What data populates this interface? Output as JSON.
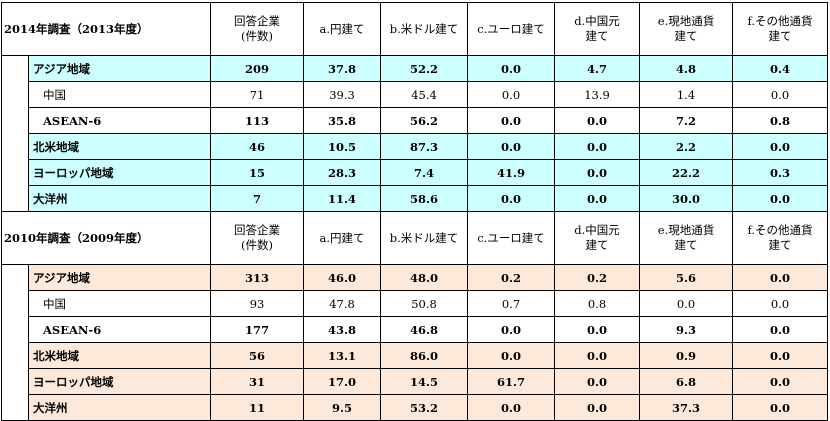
{
  "columns": [
    "回答企業\n(件数)",
    "a.円建て",
    "b.米ドル建て",
    "c.ユーロ建て",
    "d.中国元\n建て",
    "e.現地通貨\n建て",
    "f.その他通貨\n建て"
  ],
  "sections": [
    {
      "title": "2014年調査（2013年度）",
      "highlight": "#ccffff",
      "rows": [
        {
          "name": "アジア地域",
          "bold": true,
          "highlight": true,
          "sub": false,
          "values": [
            "209",
            "37.8",
            "52.2",
            "0.0",
            "4.7",
            "4.8",
            "0.4"
          ]
        },
        {
          "name": "中国",
          "bold": false,
          "highlight": false,
          "sub": true,
          "values": [
            "71",
            "39.3",
            "45.4",
            "0.0",
            "13.9",
            "1.4",
            "0.0"
          ]
        },
        {
          "name": "ASEAN-6",
          "bold": true,
          "highlight": false,
          "sub": true,
          "values": [
            "113",
            "35.8",
            "56.2",
            "0.0",
            "0.0",
            "7.2",
            "0.8"
          ]
        },
        {
          "name": "北米地域",
          "bold": true,
          "highlight": true,
          "sub": false,
          "values": [
            "46",
            "10.5",
            "87.3",
            "0.0",
            "0.0",
            "2.2",
            "0.0"
          ]
        },
        {
          "name": "ヨーロッパ地域",
          "bold": true,
          "highlight": true,
          "sub": false,
          "values": [
            "15",
            "28.3",
            "7.4",
            "41.9",
            "0.0",
            "22.2",
            "0.3"
          ]
        },
        {
          "name": "大洋州",
          "bold": true,
          "highlight": true,
          "sub": false,
          "values": [
            "7",
            "11.4",
            "58.6",
            "0.0",
            "0.0",
            "30.0",
            "0.0"
          ]
        }
      ]
    },
    {
      "title": "2010年調査（2009年度）",
      "highlight": "#fde9d9",
      "rows": [
        {
          "name": "アジア地域",
          "bold": true,
          "highlight": true,
          "sub": false,
          "values": [
            "313",
            "46.0",
            "48.0",
            "0.2",
            "0.2",
            "5.6",
            "0.0"
          ]
        },
        {
          "name": "中国",
          "bold": false,
          "highlight": false,
          "sub": true,
          "values": [
            "93",
            "47.8",
            "50.8",
            "0.7",
            "0.8",
            "0.0",
            "0.0"
          ]
        },
        {
          "name": "ASEAN-6",
          "bold": true,
          "highlight": false,
          "sub": true,
          "values": [
            "177",
            "43.8",
            "46.8",
            "0.0",
            "0.0",
            "9.3",
            "0.0"
          ]
        },
        {
          "name": "北米地域",
          "bold": true,
          "highlight": true,
          "sub": false,
          "values": [
            "56",
            "13.1",
            "86.0",
            "0.0",
            "0.0",
            "0.9",
            "0.0"
          ]
        },
        {
          "name": "ヨーロッパ地域",
          "bold": true,
          "highlight": true,
          "sub": false,
          "values": [
            "31",
            "17.0",
            "14.5",
            "61.7",
            "0.0",
            "6.8",
            "0.0"
          ]
        },
        {
          "name": "大洋州",
          "bold": true,
          "highlight": true,
          "sub": false,
          "values": [
            "11",
            "9.5",
            "53.2",
            "0.0",
            "0.0",
            "37.3",
            "0.0"
          ]
        }
      ]
    }
  ]
}
